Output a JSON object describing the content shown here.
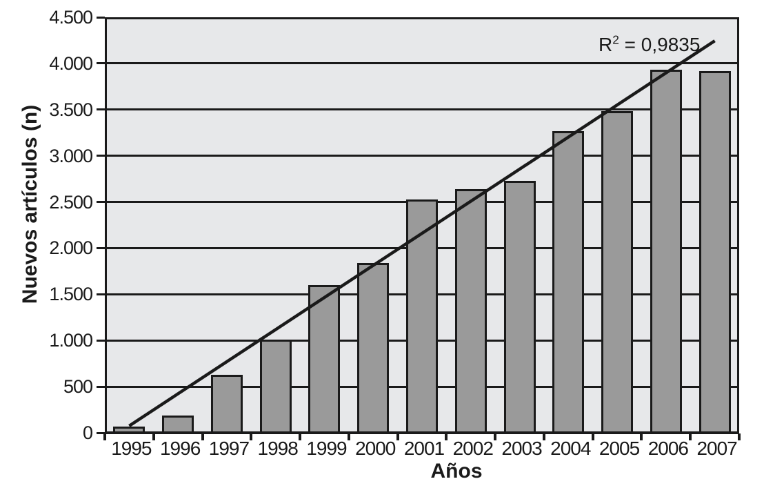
{
  "chart_data": {
    "type": "bar",
    "title": "",
    "xlabel": "Años",
    "ylabel": "Nuevos artículos (n)",
    "categories": [
      "1995",
      "1996",
      "1997",
      "1998",
      "1999",
      "2000",
      "2001",
      "2002",
      "2003",
      "2004",
      "2005",
      "2006",
      "2007"
    ],
    "values": [
      70,
      190,
      630,
      1010,
      1600,
      1840,
      2530,
      2640,
      2730,
      3270,
      3480,
      3930,
      3920
    ],
    "ylim": [
      0,
      4500
    ],
    "ytick_step": 500,
    "ytick_labels": [
      "0",
      "500",
      "1.000",
      "1.500",
      "2.000",
      "2.500",
      "3.000",
      "3.500",
      "4.000",
      "4.500"
    ],
    "grid": "horizontal-major",
    "legend": "none",
    "trendline": {
      "type": "linear",
      "x_start": "1995",
      "y_start": 75,
      "x_end": "2007",
      "y_end": 4245,
      "annotation": {
        "base": "R",
        "sup": "2",
        "rest": " = 0,9835"
      }
    },
    "colors": {
      "bar_fill": "#9a9a9a",
      "frame": "#1a1a1a",
      "line": "#1a1a1a",
      "plot_bg": "#e7e8ea",
      "text": "#1a1a1a",
      "background": "#ffffff"
    }
  }
}
